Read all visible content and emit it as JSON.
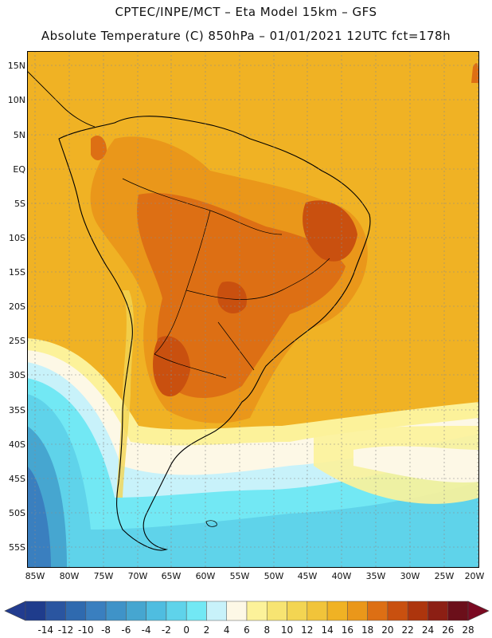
{
  "header": {
    "line1": "CPTEC/INPE/MCT –  Eta Model 15km – GFS",
    "line2": "Absolute Temperature (C) 850hPa – 01/01/2021 12UTC fct=178h"
  },
  "map": {
    "region": "South America",
    "lat_labels": [
      "15N",
      "10N",
      "5N",
      "EQ",
      "5S",
      "10S",
      "15S",
      "20S",
      "25S",
      "30S",
      "35S",
      "40S",
      "45S",
      "50S",
      "55S"
    ],
    "lon_labels": [
      "85W",
      "80W",
      "75W",
      "70W",
      "65W",
      "60W",
      "55W",
      "50W",
      "45W",
      "40W",
      "35W",
      "30W",
      "25W",
      "20W"
    ]
  },
  "colorbar": {
    "unit": "C",
    "labels": [
      "-14",
      "-12",
      "-10",
      "-8",
      "-6",
      "-4",
      "-2",
      "0",
      "2",
      "4",
      "6",
      "8",
      "10",
      "12",
      "14",
      "16",
      "18",
      "20",
      "22",
      "24",
      "26",
      "28"
    ],
    "colors": [
      "#1f3c8c",
      "#2a55a0",
      "#2f6aaf",
      "#3a7fbf",
      "#3f93c8",
      "#46a6d0",
      "#4fbde0",
      "#5fd3ea",
      "#72e8f4",
      "#c8f2fa",
      "#fdf8e6",
      "#fcf29a",
      "#f7e472",
      "#f3d552",
      "#f1c43a",
      "#f0b224",
      "#ea971a",
      "#dd6f14",
      "#c9500f",
      "#ad350d",
      "#8c1f14",
      "#6b0f1a"
    ],
    "under_color": "#223c8f",
    "over_color": "#7a0a22"
  }
}
